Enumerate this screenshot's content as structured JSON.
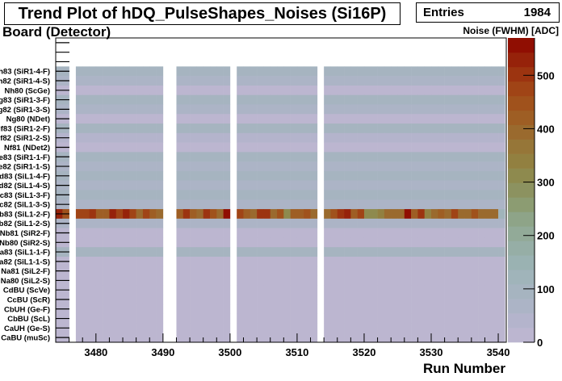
{
  "title": "Trend Plot of hDQ_PulseShapes_Noises (Si16P)",
  "stats": {
    "label": "Entries",
    "value": "1984"
  },
  "chart_data": {
    "type": "heatmap",
    "title": "Trend Plot of hDQ_PulseShapes_Noises (Si16P)",
    "xlabel": "Run Number",
    "ylabel": "Board (Detector)",
    "zlabel": "Noise (FWHM) [ADC]",
    "xlim": [
      3474,
      3541.2
    ],
    "zlim": [
      0,
      570
    ],
    "x_ticks": [
      "3480",
      "3490",
      "3500",
      "3510",
      "3520",
      "3530",
      "3540"
    ],
    "z_ticks": [
      "0",
      "100",
      "200",
      "300",
      "400",
      "500"
    ],
    "palette": [
      "#bcb6d0",
      "#b4b4cc",
      "#acb4c6",
      "#a6b4c0",
      "#a0b4ba",
      "#9ab2b2",
      "#96aea6",
      "#92aa98",
      "#8ea488",
      "#8c9c72",
      "#8c9260",
      "#8e8a4e",
      "#928040",
      "#967638",
      "#9a6a2e",
      "#9e5e24",
      "#a0521c",
      "#a04416",
      "#9c3410",
      "#96220a",
      "#900e02"
    ],
    "runs": [
      3474,
      3475,
      3477,
      3478,
      3479,
      3480,
      3481,
      3482,
      3483,
      3484,
      3485,
      3486,
      3487,
      3488,
      3489,
      3492,
      3493,
      3494,
      3495,
      3496,
      3497,
      3498,
      3499,
      3501,
      3502,
      3503,
      3504,
      3505,
      3506,
      3507,
      3508,
      3509,
      3510,
      3511,
      3512,
      3514,
      3515,
      3516,
      3517,
      3518,
      3519,
      3520,
      3521,
      3522,
      3523,
      3524,
      3525,
      3526,
      3527,
      3528,
      3529,
      3530,
      3531,
      3532,
      3533,
      3534,
      3535,
      3536,
      3537,
      3538,
      3539,
      3540
    ],
    "rows": [
      {
        "label": "Nh83 (SiR1-4-F)",
        "value": 90
      },
      {
        "label": "Nh82 (SiR1-4-S)",
        "value": 55
      },
      {
        "label": "Nh80 (ScGe)",
        "value": 15
      },
      {
        "label": "Ng83 (SiR1-3-F)",
        "value": 90
      },
      {
        "label": "Ng82 (SiR1-3-S)",
        "value": 55
      },
      {
        "label": "Ng80 (NDet)",
        "value": 15
      },
      {
        "label": "Nf83 (SiR1-2-F)",
        "value": 90
      },
      {
        "label": "Nf82 (SiR1-2-S)",
        "value": 30
      },
      {
        "label": "Nf81 (NDet2)",
        "value": 15
      },
      {
        "label": "Ne83 (SiR1-1-F)",
        "value": 85
      },
      {
        "label": "Ne82 (SiR1-1-S)",
        "value": 55
      },
      {
        "label": "Nd83 (SiL1-4-F)",
        "value": 90
      },
      {
        "label": "Nd82 (SiL1-4-S)",
        "value": 55
      },
      {
        "label": "Nc83 (SiL1-3-F)",
        "value": 90
      },
      {
        "label": "Nc82 (SiL1-3-S)",
        "value": 75
      },
      {
        "label": "Nb83 (SiL1-2-F)",
        "values": [
          540,
          450,
          470,
          470,
          500,
          430,
          430,
          520,
          470,
          530,
          470,
          380,
          480,
          420,
          390,
          420,
          500,
          430,
          380,
          510,
          460,
          400,
          560,
          470,
          420,
          380,
          500,
          500,
          380,
          440,
          300,
          420,
          420,
          440,
          380,
          380,
          440,
          500,
          530,
          420,
          470,
          310,
          310,
          340,
          380,
          380,
          380,
          570,
          430,
          500,
          330,
          380,
          430,
          400,
          470,
          390,
          400,
          460,
          380,
          380,
          380,
          110
        ]
      },
      {
        "label": "Nb82 (SiL1-2-S)",
        "value": 60
      },
      {
        "label": "Nb81 (SiR2-F)",
        "value": 8
      },
      {
        "label": "Nb80 (SiR2-S)",
        "value": 8
      },
      {
        "label": "Na83 (SiL1-1-F)",
        "value": 90
      },
      {
        "label": "Na82 (SiL1-1-S)",
        "value": 15
      },
      {
        "label": "Na81 (SiL2-F)",
        "value": 5
      },
      {
        "label": "Na80 (SiL2-S)",
        "value": 5
      },
      {
        "label": "CdBU (ScVe)",
        "value": 0
      },
      {
        "label": "CcBU (ScR)",
        "value": 0
      },
      {
        "label": "CbUH (Ge-F)",
        "value": 0
      },
      {
        "label": "CbBU (ScL)",
        "value": 0
      },
      {
        "label": "CaUH (Ge-S)",
        "value": 0
      },
      {
        "label": "CaBU (muSc)",
        "value": 0
      }
    ],
    "empty_rows_top": 3,
    "grid": false
  }
}
